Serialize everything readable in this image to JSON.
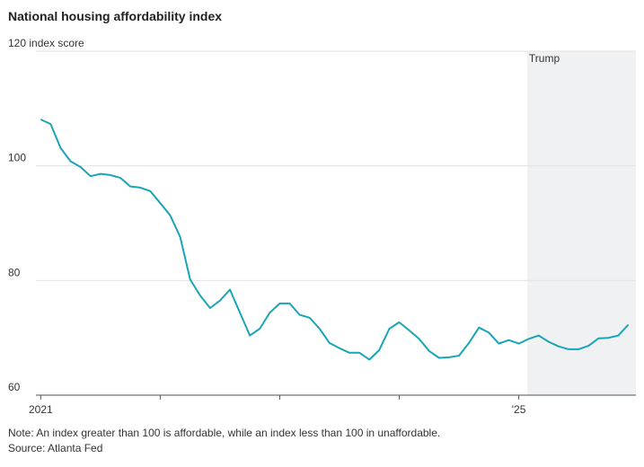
{
  "chart_data": {
    "type": "line",
    "title": "National housing affordability index",
    "note": "Note: An index greater than 100 is affordable, while an index less than 100 in unaffordable.",
    "source": "Source: Atlanta Fed",
    "x": [
      2021.0,
      2021.083,
      2021.167,
      2021.25,
      2021.333,
      2021.417,
      2021.5,
      2021.583,
      2021.667,
      2021.75,
      2021.833,
      2021.917,
      2022.0,
      2022.083,
      2022.167,
      2022.25,
      2022.333,
      2022.417,
      2022.5,
      2022.583,
      2022.667,
      2022.75,
      2022.833,
      2022.917,
      2023.0,
      2023.083,
      2023.167,
      2023.25,
      2023.333,
      2023.417,
      2023.5,
      2023.583,
      2023.667,
      2023.75,
      2023.833,
      2023.917,
      2024.0,
      2024.083,
      2024.167,
      2024.25,
      2024.333,
      2024.417,
      2024.5,
      2024.583,
      2024.667,
      2024.75,
      2024.833,
      2024.917,
      2025.0,
      2025.083,
      2025.167,
      2025.25,
      2025.333,
      2025.417,
      2025.5,
      2025.583,
      2025.667,
      2025.75,
      2025.833,
      2025.917
    ],
    "series": [
      {
        "color": "#19a5b6",
        "values": [
          108.1,
          107.3,
          103.1,
          100.8,
          99.8,
          98.2,
          98.6,
          98.4,
          97.9,
          96.4,
          96.2,
          95.6,
          93.5,
          91.4,
          87.6,
          80.2,
          77.4,
          75.2,
          76.5,
          78.4,
          74.4,
          70.4,
          71.6,
          74.4,
          76.0,
          76.0,
          74.0,
          73.5,
          71.6,
          69.1,
          68.2,
          67.4,
          67.4,
          66.2,
          67.9,
          71.6,
          72.7,
          71.3,
          69.8,
          67.7,
          66.5,
          66.6,
          66.9,
          69.1,
          71.8,
          70.9,
          69.0,
          69.6,
          69.0,
          69.8,
          70.4,
          69.3,
          68.5,
          68.0,
          68.0,
          68.6,
          69.9,
          70.0,
          70.4,
          72.3
        ]
      }
    ],
    "xlim": [
      2020.96,
      2025.98
    ],
    "xticks": [
      2021,
      {
        "value": 2022,
        "label": null
      },
      {
        "value": 2023,
        "label": null
      },
      {
        "value": 2024,
        "label": null
      },
      {
        "value": 2025,
        "label": "'25"
      }
    ],
    "ylim": [
      60,
      120
    ],
    "yticks": [
      60,
      80,
      100,
      {
        "value": 120,
        "label": "120 index score"
      }
    ],
    "grid": true,
    "shaded_period": {
      "label": "Trump",
      "start": 2025.07,
      "color": "#f0f1f3"
    }
  }
}
